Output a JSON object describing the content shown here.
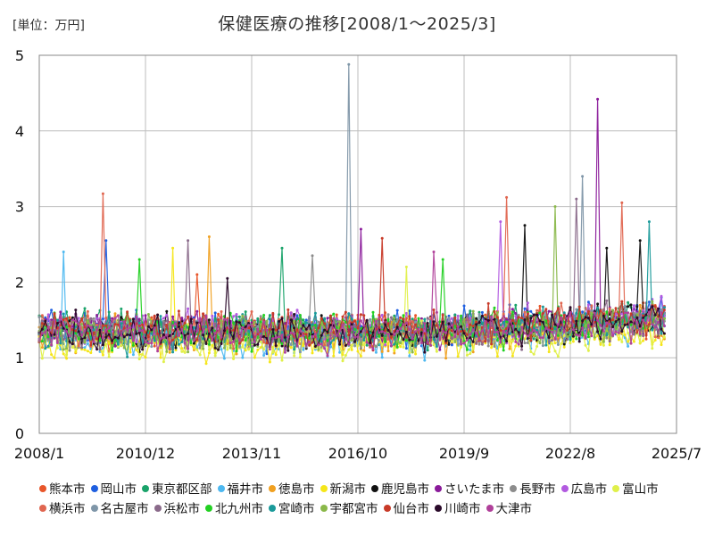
{
  "unit_label": "[単位：万円]",
  "chart_data": {
    "type": "line",
    "title": "保健医療の推移[2008/1～2025/3]",
    "xlabel": "",
    "ylabel": "",
    "x_start": "2008/1",
    "x_end": "2025/3",
    "x_tick_labels": [
      "2008/1",
      "2010/12",
      "2013/11",
      "2016/10",
      "2019/9",
      "2022/8",
      "2025/7"
    ],
    "x_range": [
      "2008/1",
      "2025/7"
    ],
    "ylim": [
      0,
      5
    ],
    "yticks": [
      0,
      1,
      2,
      3,
      4,
      5
    ],
    "grid": true,
    "legend_position": "bottom",
    "series": [
      {
        "name": "熊本市",
        "color": "#e8562a",
        "range": [
          1.05,
          1.7
        ],
        "peaks": [
          [
            "2012/5",
            2.1
          ]
        ]
      },
      {
        "name": "岡山市",
        "color": "#1f5fe0",
        "range": [
          1.0,
          1.75
        ],
        "peaks": [
          [
            "2009/11",
            2.55
          ]
        ]
      },
      {
        "name": "東京都区部",
        "color": "#1aa36a",
        "range": [
          1.05,
          1.7
        ],
        "peaks": [
          [
            "2014/9",
            2.45
          ]
        ]
      },
      {
        "name": "福井市",
        "color": "#4db8f0",
        "range": [
          0.9,
          1.6
        ],
        "peaks": [
          [
            "2008/9",
            2.4
          ]
        ]
      },
      {
        "name": "徳島市",
        "color": "#f0a020",
        "range": [
          0.95,
          1.65
        ],
        "peaks": [
          [
            "2012/9",
            2.6
          ]
        ]
      },
      {
        "name": "新潟市",
        "color": "#f5e61a",
        "range": [
          0.85,
          1.5
        ],
        "peaks": [
          [
            "2011/9",
            2.45
          ]
        ]
      },
      {
        "name": "鹿児島市",
        "color": "#111111",
        "range": [
          1.0,
          1.65
        ],
        "peaks": [
          [
            "2021/5",
            2.75
          ],
          [
            "2023/8",
            2.45
          ],
          [
            "2024/7",
            2.55
          ]
        ]
      },
      {
        "name": "さいたま市",
        "color": "#8a1a9a",
        "range": [
          1.05,
          1.7
        ],
        "peaks": [
          [
            "2016/11",
            2.7
          ],
          [
            "2023/5",
            4.42
          ]
        ]
      },
      {
        "name": "長野市",
        "color": "#8c8c8c",
        "range": [
          1.0,
          1.65
        ],
        "peaks": [
          [
            "2015/7",
            2.35
          ]
        ]
      },
      {
        "name": "広島市",
        "color": "#b25ae0",
        "range": [
          1.05,
          1.7
        ],
        "peaks": [
          [
            "2020/9",
            2.8
          ]
        ]
      },
      {
        "name": "富山市",
        "color": "#e0f04a",
        "range": [
          0.85,
          1.55
        ],
        "peaks": [
          [
            "2018/2",
            2.2
          ]
        ]
      },
      {
        "name": "横浜市",
        "color": "#e06650",
        "range": [
          1.05,
          1.7
        ],
        "peaks": [
          [
            "2009/10",
            3.17
          ],
          [
            "2020/11",
            3.12
          ],
          [
            "2024/1",
            3.05
          ]
        ]
      },
      {
        "name": "名古屋市",
        "color": "#7f96a8",
        "range": [
          1.0,
          1.65
        ],
        "peaks": [
          [
            "2016/7",
            4.88
          ],
          [
            "2022/12",
            3.4
          ]
        ]
      },
      {
        "name": "浜松市",
        "color": "#8a6a8a",
        "range": [
          1.0,
          1.65
        ],
        "peaks": [
          [
            "2012/2",
            2.55
          ],
          [
            "2022/10",
            3.1
          ]
        ]
      },
      {
        "name": "北九州市",
        "color": "#22d022",
        "range": [
          1.0,
          1.7
        ],
        "peaks": [
          [
            "2010/10",
            2.3
          ],
          [
            "2019/2",
            2.3
          ]
        ]
      },
      {
        "name": "宮崎市",
        "color": "#1a9a9a",
        "range": [
          1.0,
          1.65
        ],
        "peaks": [
          [
            "2024/10",
            2.8
          ]
        ]
      },
      {
        "name": "宇都宮市",
        "color": "#8ab84a",
        "range": [
          1.0,
          1.65
        ],
        "peaks": [
          [
            "2022/3",
            3.0
          ]
        ]
      },
      {
        "name": "仙台市",
        "color": "#c83a28",
        "range": [
          1.05,
          1.7
        ],
        "peaks": [
          [
            "2017/6",
            2.58
          ]
        ]
      },
      {
        "name": "川崎市",
        "color": "#2a0a2a",
        "range": [
          1.0,
          1.65
        ],
        "peaks": [
          [
            "2013/3",
            2.05
          ]
        ]
      },
      {
        "name": "大津市",
        "color": "#b0409a",
        "range": [
          1.0,
          1.65
        ],
        "peaks": [
          [
            "2018/11",
            2.4
          ]
        ]
      }
    ]
  }
}
